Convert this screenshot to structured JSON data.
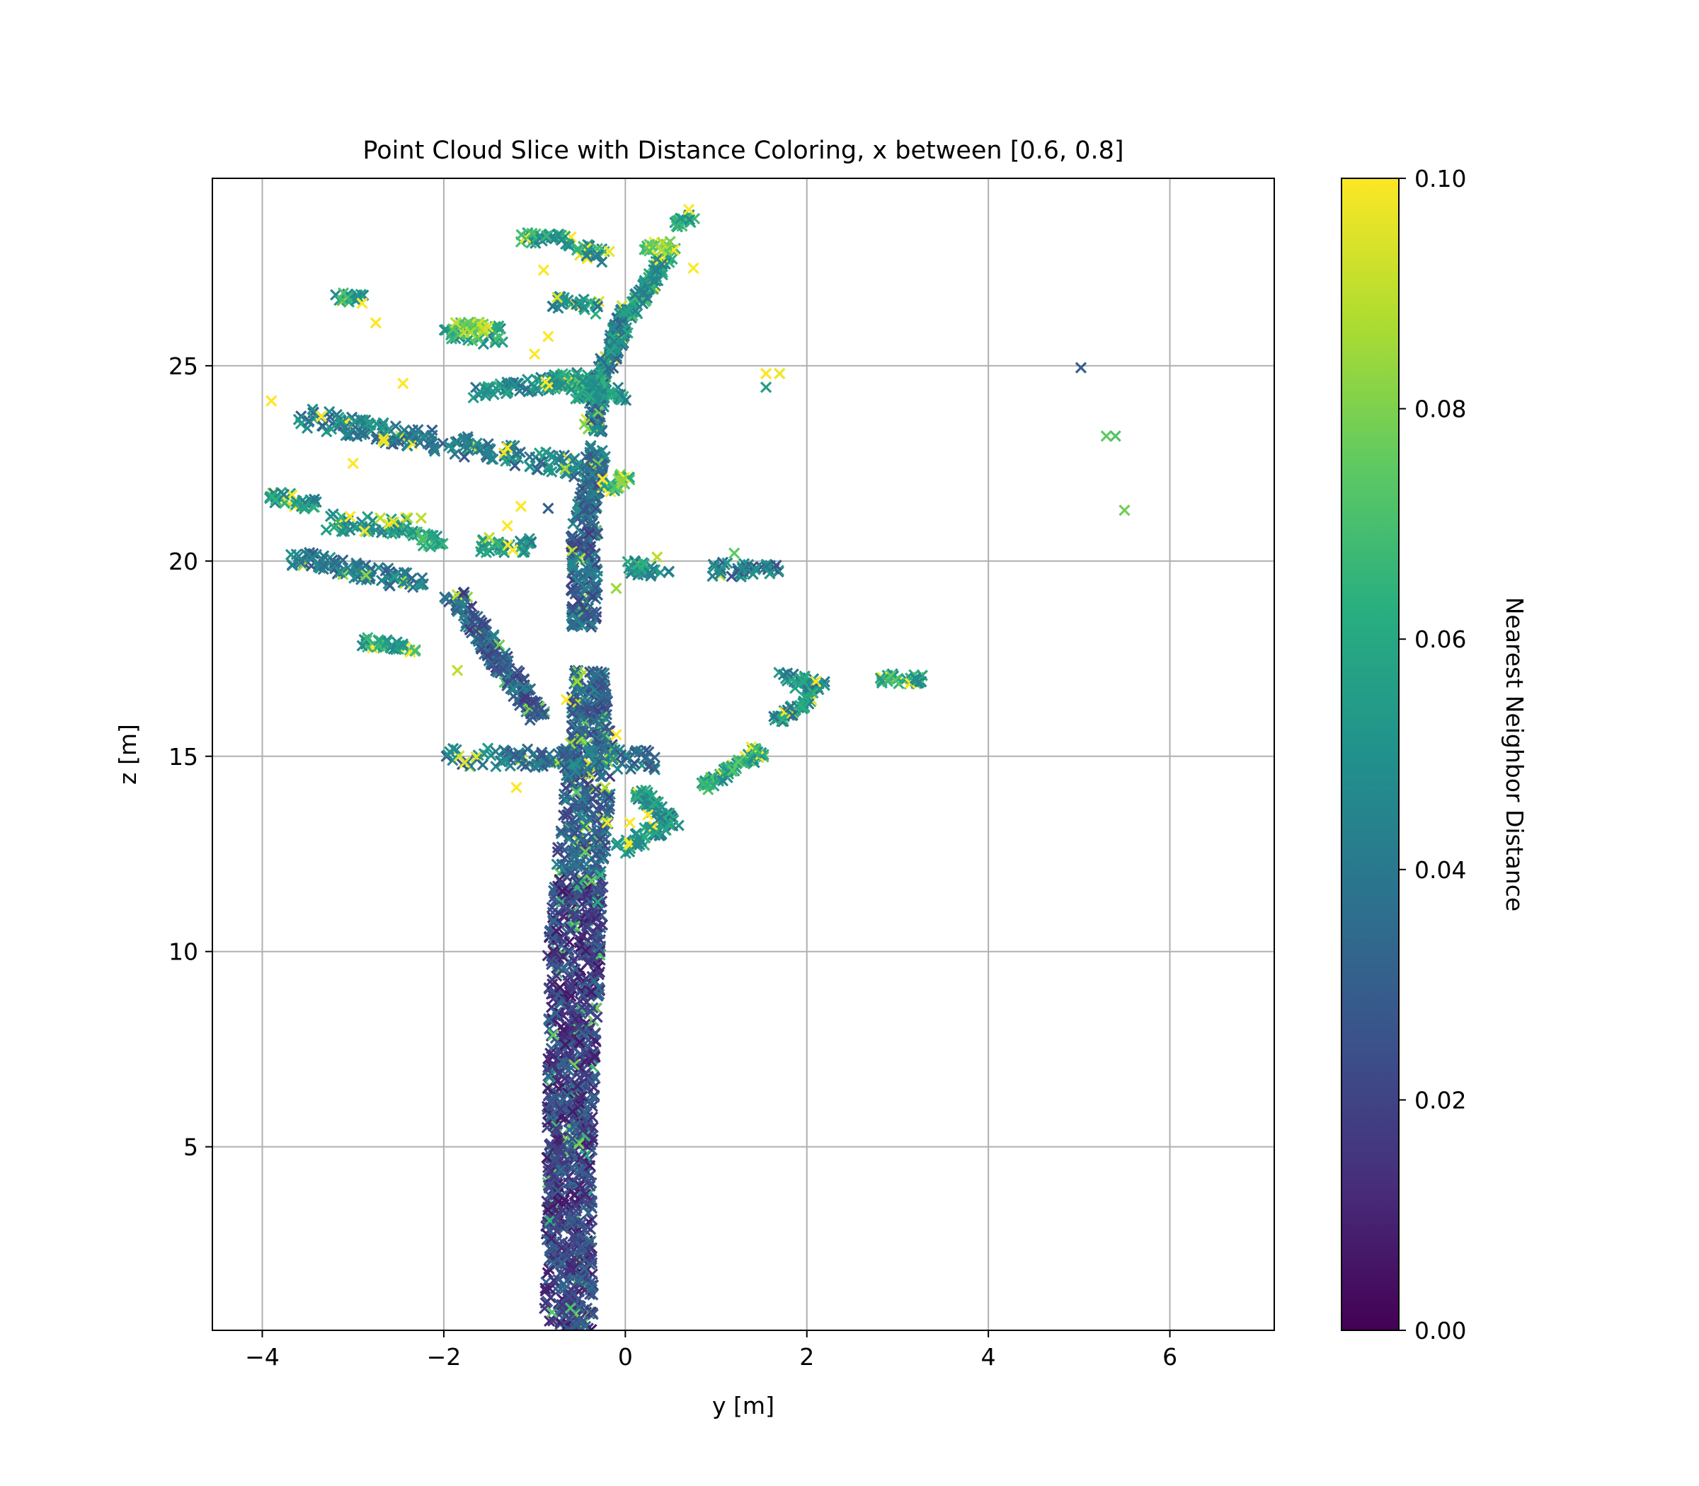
{
  "chart_data": {
    "type": "scatter",
    "title": "Point Cloud Slice with Distance Coloring, x between [0.6, 0.8]",
    "xlabel": "y [m]",
    "ylabel": "z [m]",
    "xlim": [
      -4.55,
      7.15
    ],
    "ylim": [
      0.3,
      29.8
    ],
    "xticks": [
      -4,
      -2,
      0,
      2,
      4,
      6
    ],
    "xtick_labels": [
      "−4",
      "−2",
      "0",
      "2",
      "4",
      "6"
    ],
    "yticks": [
      5,
      10,
      15,
      20,
      25
    ],
    "ytick_labels": [
      "5",
      "10",
      "15",
      "20",
      "25"
    ],
    "grid": true,
    "marker": "x",
    "colormap": "viridis",
    "colorbar": {
      "label": "Nearest Neighbor Distance",
      "range": [
        0,
        0.1
      ],
      "ticks": [
        0,
        0.02,
        0.04,
        0.06,
        0.08,
        0.1
      ],
      "tick_labels": [
        "0.00",
        "0.02",
        "0.04",
        "0.06",
        "0.08",
        "0.10"
      ]
    },
    "structures": [
      {
        "kind": "trunk",
        "z": [
          0.3,
          17.2
        ],
        "y_center": [
          -0.62,
          -0.62,
          -0.58,
          -0.56,
          -0.5,
          -0.38,
          -0.4
        ],
        "z_nodes": [
          0.3,
          4,
          8,
          10,
          12,
          15,
          17.2
        ],
        "width": [
          0.55,
          0.5,
          0.55,
          0.6,
          0.55,
          0.5,
          0.35
        ],
        "c": 0.02
      },
      {
        "kind": "segment",
        "from": [
          -0.45,
          18.3
        ],
        "to": [
          -0.45,
          21.0
        ],
        "width": 0.3,
        "c": 0.032
      },
      {
        "kind": "segment",
        "from": [
          -0.45,
          21.0
        ],
        "to": [
          -0.3,
          23.0
        ],
        "width": 0.22,
        "c": 0.036
      },
      {
        "kind": "segment",
        "from": [
          -0.35,
          23.3
        ],
        "to": [
          -0.3,
          24.8
        ],
        "width": 0.2,
        "c": 0.038
      },
      {
        "kind": "segment",
        "from": [
          -0.3,
          24.5
        ],
        "to": [
          0.05,
          26.5
        ],
        "width": 0.18,
        "c": 0.045
      },
      {
        "kind": "segment",
        "from": [
          0.05,
          26.3
        ],
        "to": [
          0.45,
          27.8
        ],
        "width": 0.15,
        "c": 0.055
      },
      {
        "kind": "segment",
        "from": [
          -1.9,
          19.2
        ],
        "to": [
          -0.95,
          16.0
        ],
        "width": 0.22,
        "c": 0.03
      },
      {
        "kind": "segment",
        "from": [
          -2.0,
          15.0
        ],
        "to": [
          0.35,
          14.9
        ],
        "width": 0.2,
        "c": 0.04
      },
      {
        "kind": "segment",
        "from": [
          -0.05,
          12.6
        ],
        "to": [
          0.55,
          13.4
        ],
        "width": 0.18,
        "c": 0.05
      },
      {
        "kind": "segment",
        "from": [
          0.15,
          14.1
        ],
        "to": [
          0.45,
          13.4
        ],
        "width": 0.15,
        "c": 0.05
      },
      {
        "kind": "segment",
        "from": [
          -3.7,
          20.1
        ],
        "to": [
          -2.2,
          19.4
        ],
        "width": 0.18,
        "c": 0.04
      },
      {
        "kind": "segment",
        "from": [
          -3.6,
          23.7
        ],
        "to": [
          -0.5,
          22.4
        ],
        "width": 0.22,
        "c": 0.042
      },
      {
        "kind": "segment",
        "from": [
          -3.9,
          21.7
        ],
        "to": [
          -3.4,
          21.4
        ],
        "width": 0.15,
        "c": 0.05
      },
      {
        "kind": "segment",
        "from": [
          -3.3,
          21.0
        ],
        "to": [
          -2.4,
          20.9
        ],
        "width": 0.18,
        "c": 0.05
      },
      {
        "kind": "segment",
        "from": [
          -2.4,
          20.6
        ],
        "to": [
          -2.0,
          20.5
        ],
        "width": 0.15,
        "c": 0.06
      },
      {
        "kind": "segment",
        "from": [
          -1.6,
          20.4
        ],
        "to": [
          -1.0,
          20.4
        ],
        "width": 0.15,
        "c": 0.055
      },
      {
        "kind": "segment",
        "from": [
          -2.0,
          25.8
        ],
        "to": [
          -1.35,
          25.8
        ],
        "width": 0.2,
        "c": 0.06
      },
      {
        "kind": "segment",
        "from": [
          -1.9,
          26.0
        ],
        "to": [
          -1.5,
          26.0
        ],
        "width": 0.12,
        "c": 0.085
      },
      {
        "kind": "segment",
        "from": [
          -1.7,
          24.3
        ],
        "to": [
          -0.4,
          24.7
        ],
        "width": 0.15,
        "c": 0.05
      },
      {
        "kind": "segment",
        "from": [
          -0.9,
          24.6
        ],
        "to": [
          -0.25,
          24.5
        ],
        "width": 0.12,
        "c": 0.06
      },
      {
        "kind": "segment",
        "from": [
          -0.6,
          24.2
        ],
        "to": [
          0.0,
          24.3
        ],
        "width": 0.15,
        "c": 0.05
      },
      {
        "kind": "segment",
        "from": [
          -1.15,
          28.3
        ],
        "to": [
          -0.6,
          28.2
        ],
        "width": 0.12,
        "c": 0.06
      },
      {
        "kind": "segment",
        "from": [
          -0.55,
          28.0
        ],
        "to": [
          -0.2,
          27.8
        ],
        "width": 0.15,
        "c": 0.055
      },
      {
        "kind": "segment",
        "from": [
          -0.8,
          26.6
        ],
        "to": [
          -0.3,
          26.5
        ],
        "width": 0.15,
        "c": 0.05
      },
      {
        "kind": "segment",
        "from": [
          0.0,
          19.9
        ],
        "to": [
          0.45,
          19.6
        ],
        "width": 0.15,
        "c": 0.05
      },
      {
        "kind": "segment",
        "from": [
          0.95,
          19.8
        ],
        "to": [
          1.7,
          19.75
        ],
        "width": 0.15,
        "c": 0.04
      },
      {
        "kind": "segment",
        "from": [
          1.65,
          17.0
        ],
        "to": [
          2.2,
          16.8
        ],
        "width": 0.15,
        "c": 0.05
      },
      {
        "kind": "segment",
        "from": [
          1.65,
          15.9
        ],
        "to": [
          2.1,
          16.6
        ],
        "width": 0.12,
        "c": 0.05
      },
      {
        "kind": "segment",
        "from": [
          0.85,
          14.2
        ],
        "to": [
          1.5,
          15.1
        ],
        "width": 0.12,
        "c": 0.06
      },
      {
        "kind": "segment",
        "from": [
          1.4,
          15.15
        ],
        "to": [
          1.45,
          15.2
        ],
        "width": 0.1,
        "c": 0.06
      },
      {
        "kind": "segment",
        "from": [
          2.8,
          17.0
        ],
        "to": [
          3.3,
          16.95
        ],
        "width": 0.1,
        "c": 0.06
      },
      {
        "kind": "segment",
        "from": [
          0.55,
          28.6
        ],
        "to": [
          0.75,
          28.8
        ],
        "width": 0.1,
        "c": 0.06
      },
      {
        "kind": "segment",
        "from": [
          -0.2,
          21.8
        ],
        "to": [
          0.0,
          22.2
        ],
        "width": 0.15,
        "c": 0.07
      },
      {
        "kind": "segment",
        "from": [
          -2.9,
          17.9
        ],
        "to": [
          -2.3,
          17.8
        ],
        "width": 0.12,
        "c": 0.06
      },
      {
        "kind": "segment",
        "from": [
          -3.2,
          26.8
        ],
        "to": [
          -2.9,
          26.7
        ],
        "width": 0.1,
        "c": 0.06
      },
      {
        "kind": "segment",
        "from": [
          0.2,
          28.0
        ],
        "to": [
          0.55,
          28.1
        ],
        "width": 0.12,
        "c": 0.08
      }
    ],
    "isolated_points": [
      {
        "y": 5.02,
        "z": 24.95,
        "c": 0.03
      },
      {
        "y": 5.3,
        "z": 23.2,
        "c": 0.075
      },
      {
        "y": 5.4,
        "z": 23.2,
        "c": 0.072
      },
      {
        "y": 5.5,
        "z": 21.3,
        "c": 0.078
      },
      {
        "y": 1.55,
        "z": 24.8,
        "c": 0.1
      },
      {
        "y": 1.7,
        "z": 24.8,
        "c": 0.098
      },
      {
        "y": 1.55,
        "z": 24.45,
        "c": 0.055
      },
      {
        "y": -3.9,
        "z": 24.1,
        "c": 0.1
      },
      {
        "y": -3.0,
        "z": 22.5,
        "c": 0.1
      },
      {
        "y": -2.45,
        "z": 24.55,
        "c": 0.1
      },
      {
        "y": -0.85,
        "z": 21.35,
        "c": 0.03
      },
      {
        "y": -1.15,
        "z": 21.4,
        "c": 0.1
      },
      {
        "y": -1.3,
        "z": 22.9,
        "c": 0.1
      },
      {
        "y": -0.65,
        "z": 16.45,
        "c": 0.1
      },
      {
        "y": -0.1,
        "z": 15.55,
        "c": 0.1
      },
      {
        "y": 1.2,
        "z": 20.2,
        "c": 0.075
      },
      {
        "y": -0.1,
        "z": 19.3,
        "c": 0.085
      },
      {
        "y": 0.35,
        "z": 20.1,
        "c": 0.09
      },
      {
        "y": -0.9,
        "z": 27.45,
        "c": 0.1
      },
      {
        "y": -0.85,
        "z": 25.75,
        "c": 0.1
      },
      {
        "y": -1.0,
        "z": 25.3,
        "c": 0.1
      },
      {
        "y": -0.45,
        "z": 23.5,
        "c": 0.08
      },
      {
        "y": -0.75,
        "z": 26.75,
        "c": 0.095
      },
      {
        "y": 0.75,
        "z": 27.5,
        "c": 0.1
      },
      {
        "y": 0.7,
        "z": 29.0,
        "c": 0.1
      },
      {
        "y": -0.25,
        "z": 22.1,
        "c": 0.1
      },
      {
        "y": 0.05,
        "z": 13.3,
        "c": 0.1
      },
      {
        "y": 0.25,
        "z": 13.5,
        "c": 0.1
      },
      {
        "y": -2.9,
        "z": 26.6,
        "c": 0.1
      },
      {
        "y": -2.75,
        "z": 26.1,
        "c": 0.1
      },
      {
        "y": -2.7,
        "z": 21.1,
        "c": 0.09
      },
      {
        "y": -2.55,
        "z": 21.0,
        "c": 0.095
      },
      {
        "y": -2.4,
        "z": 21.1,
        "c": 0.085
      },
      {
        "y": -2.25,
        "z": 21.1,
        "c": 0.09
      },
      {
        "y": -3.35,
        "z": 23.7,
        "c": 0.1
      },
      {
        "y": -1.85,
        "z": 17.2,
        "c": 0.09
      },
      {
        "y": -1.2,
        "z": 14.2,
        "c": 0.1
      },
      {
        "y": -0.2,
        "z": 13.3,
        "c": 0.098
      },
      {
        "y": -1.5,
        "z": 20.6,
        "c": 0.09
      },
      {
        "y": -1.3,
        "z": 20.9,
        "c": 0.1
      }
    ]
  }
}
